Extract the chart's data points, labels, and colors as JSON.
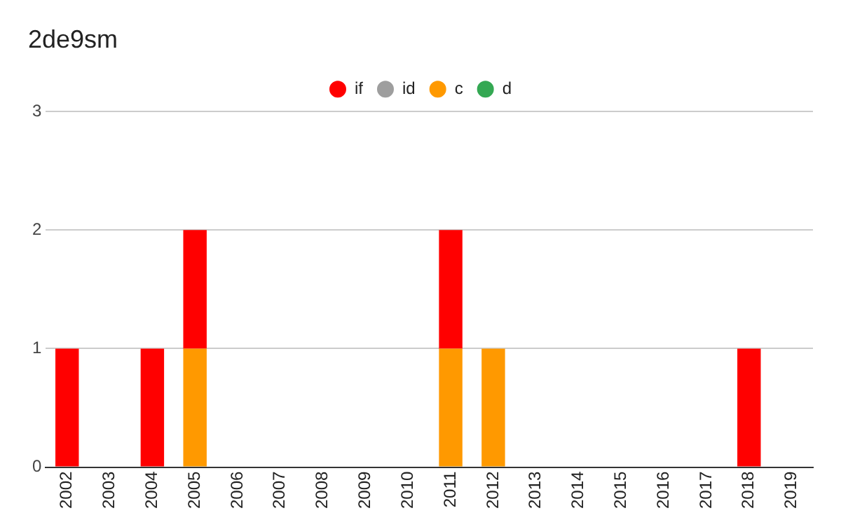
{
  "chart_data": {
    "type": "bar",
    "title": "2de9sm",
    "stacked": true,
    "grid": "y",
    "legend": "top",
    "categories": [
      "2002",
      "2003",
      "2004",
      "2005",
      "2006",
      "2007",
      "2008",
      "2009",
      "2010",
      "2011",
      "2012",
      "2013",
      "2014",
      "2015",
      "2016",
      "2017",
      "2018",
      "2019"
    ],
    "series": [
      {
        "name": "d",
        "color": "#34a853",
        "values": [
          0,
          0,
          0,
          0,
          0,
          0,
          0,
          0,
          0,
          0,
          0,
          0,
          0,
          0,
          0,
          0,
          0,
          0
        ]
      },
      {
        "name": "c",
        "color": "#ff9900",
        "values": [
          0,
          0,
          0,
          1,
          0,
          0,
          0,
          0,
          0,
          1,
          1,
          0,
          0,
          0,
          0,
          0,
          0,
          0
        ]
      },
      {
        "name": "id",
        "color": "#9e9e9e",
        "values": [
          0,
          0,
          0,
          0,
          0,
          0,
          0,
          0,
          0,
          0,
          0,
          0,
          0,
          0,
          0,
          0,
          0,
          0
        ]
      },
      {
        "name": "if",
        "color": "#ff0000",
        "values": [
          1,
          0,
          1,
          1,
          0,
          0,
          0,
          0,
          0,
          1,
          0,
          0,
          0,
          0,
          0,
          0,
          1,
          0
        ]
      }
    ],
    "ylim": [
      0,
      3
    ],
    "yticks": [
      0,
      1,
      2,
      3
    ]
  }
}
